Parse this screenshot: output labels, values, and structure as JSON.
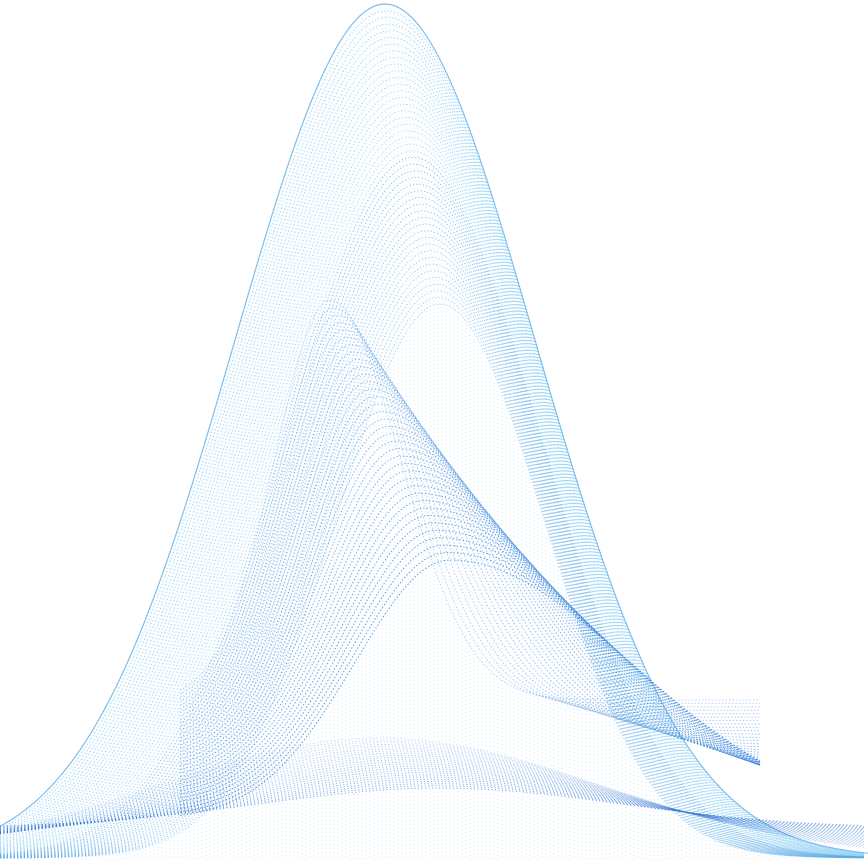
{
  "artwork": {
    "subject": "abstract-wireframe-wave",
    "colors": {
      "background": "#ffffff",
      "light_blue": "#8fd0f4",
      "mid_blue": "#5aa9e6",
      "deep_blue": "#2f7fd8",
      "dark_blue": "#2a6fd0"
    }
  }
}
